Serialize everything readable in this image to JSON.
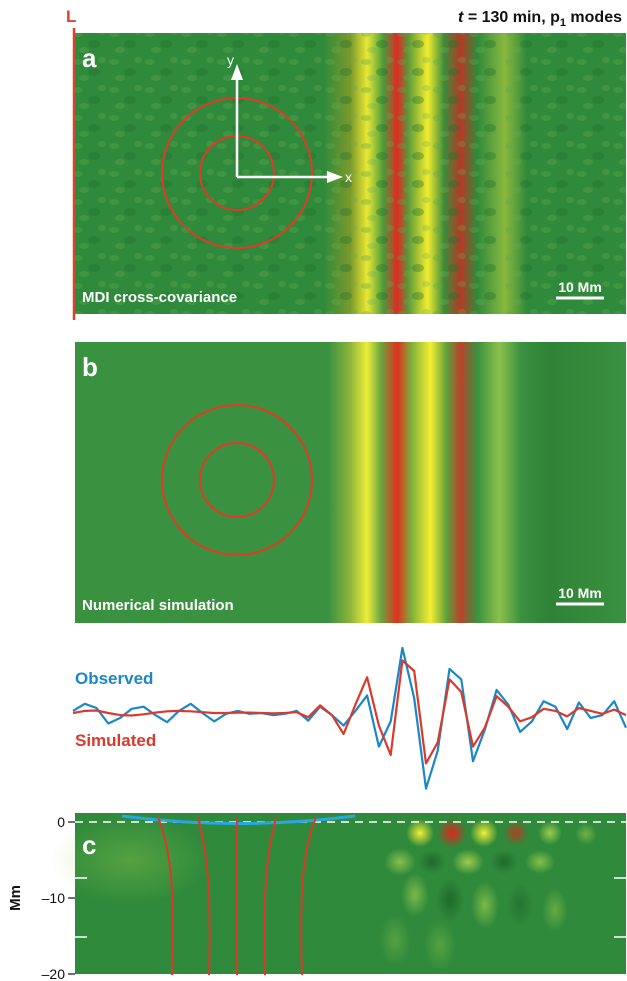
{
  "header": {
    "left_marker": "L",
    "t_symbol": "t",
    "title_rest": " = 130 min, p",
    "title_sub": "1",
    "title_end": " modes"
  },
  "panel_a": {
    "letter": "a",
    "caption": "MDI cross-covariance",
    "scale_bar": "10 Mm",
    "axis_x": "x",
    "axis_y": "y"
  },
  "panel_b": {
    "letter": "b",
    "caption": "Numerical simulation",
    "scale_bar": "10 Mm"
  },
  "profile": {
    "observed_label": "Observed",
    "simulated_label": "Simulated"
  },
  "panel_c": {
    "letter": "c",
    "ylabel": "Mm",
    "ticks": [
      "0",
      "–10",
      "–20"
    ]
  },
  "colors": {
    "observed": "#1b87c9",
    "simulated": "#d93a2b",
    "background_green": "#2f8a3b",
    "marker_red": "#e04030"
  },
  "chart_data": {
    "type": "line",
    "series": [
      {
        "name": "Observed",
        "values": [
          0.05,
          0.22,
          0.12,
          -0.25,
          -0.12,
          0.1,
          0.15,
          -0.05,
          -0.22,
          0.05,
          0.22,
          0.0,
          -0.2,
          -0.02,
          0.05,
          -0.02,
          0.0,
          -0.05,
          -0.02,
          0.05,
          -0.18,
          0.15,
          -0.05,
          -0.3,
          0.05,
          0.42,
          -0.8,
          -0.2,
          1.55,
          0.35,
          -1.8,
          -0.9,
          1.05,
          0.8,
          -1.15,
          -0.4,
          0.55,
          0.2,
          -0.45,
          -0.2,
          0.28,
          0.15,
          -0.38,
          0.25,
          -0.12,
          -0.05,
          0.28,
          -0.35
        ]
      },
      {
        "name": "Simulated",
        "values": [
          0.0,
          0.05,
          0.06,
          0.0,
          -0.05,
          -0.06,
          -0.03,
          0.01,
          0.04,
          0.05,
          0.04,
          0.02,
          0.0,
          0.0,
          0.01,
          0.01,
          0.0,
          -0.01,
          0.0,
          0.02,
          -0.1,
          0.18,
          -0.05,
          -0.5,
          0.2,
          0.85,
          -0.3,
          -1.0,
          1.25,
          1.0,
          -1.2,
          -0.7,
          0.8,
          0.5,
          -0.8,
          -0.35,
          0.4,
          0.15,
          -0.2,
          -0.1,
          0.1,
          0.05,
          -0.08,
          0.12,
          0.05,
          -0.02,
          0.08,
          -0.05
        ]
      }
    ]
  }
}
